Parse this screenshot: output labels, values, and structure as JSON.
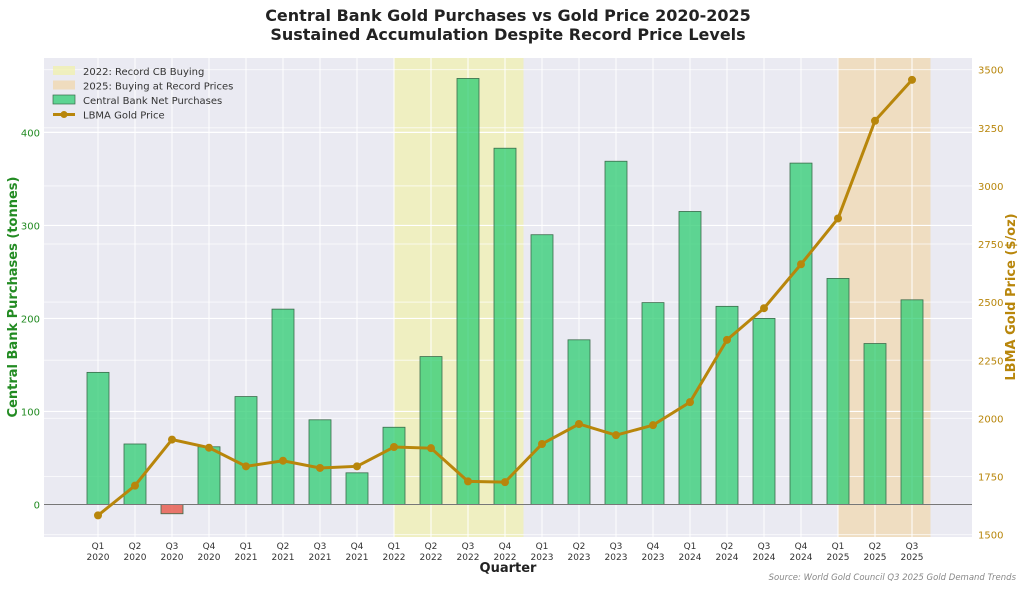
{
  "chart_data": {
    "type": "bar+line",
    "title": "Central Bank Gold Purchases vs Gold Price 2020-2025",
    "subtitle": "Sustained Accumulation Despite Record Price Levels",
    "xlabel": "Quarter",
    "ylabel_left": "Central Bank Purchases (tonnes)",
    "ylabel_right": "LBMA Gold Price ($/oz)",
    "source": "Source: World Gold Council Q3 2025 Gold Demand Trends",
    "categories": [
      "Q1\n2020",
      "Q2\n2020",
      "Q3\n2020",
      "Q4\n2020",
      "Q1\n2021",
      "Q2\n2021",
      "Q3\n2021",
      "Q4\n2021",
      "Q1\n2022",
      "Q2\n2022",
      "Q3\n2022",
      "Q4\n2022",
      "Q1\n2023",
      "Q2\n2023",
      "Q3\n2023",
      "Q4\n2023",
      "Q1\n2024",
      "Q2\n2024",
      "Q3\n2024",
      "Q4\n2024",
      "Q1\n2025",
      "Q2\n2025",
      "Q3\n2025"
    ],
    "series": [
      {
        "name": "Central Bank Net Purchases",
        "type": "bar",
        "axis": "left",
        "color": "#2ecc71",
        "negative_color": "#e74c3c",
        "values": [
          142,
          65,
          -10,
          62,
          116,
          210,
          91,
          34,
          83,
          159,
          458,
          383,
          290,
          177,
          369,
          217,
          315,
          213,
          200,
          367,
          243,
          173,
          220
        ]
      },
      {
        "name": "LBMA Gold Price",
        "type": "line",
        "axis": "right",
        "color": "#b8860b",
        "values": [
          1583,
          1711,
          1909,
          1874,
          1794,
          1818,
          1787,
          1794,
          1877,
          1872,
          1729,
          1726,
          1890,
          1976,
          1928,
          1971,
          2070,
          2338,
          2474,
          2663,
          2860,
          3280,
          3456
        ]
      }
    ],
    "ylim_left": [
      -35,
      480
    ],
    "yticks_left": [
      0,
      100,
      200,
      300,
      400
    ],
    "ylim_right": [
      1490,
      3550
    ],
    "yticks_right": [
      1500,
      1750,
      2000,
      2250,
      2500,
      2750,
      3000,
      3250,
      3500
    ],
    "spans": [
      {
        "label": "2022: Record CB Buying",
        "from": "Q1 2022",
        "to": "Q4 2022",
        "color": "#f0f0b0"
      },
      {
        "label": "2025: Buying at Record Prices",
        "from": "Q1 2025",
        "to": "Q3 2025",
        "color": "#f0d8b0"
      }
    ],
    "legend_position": "upper-left",
    "grid": true,
    "left_axis_color": "#228b22",
    "right_axis_color": "#b8860b"
  }
}
